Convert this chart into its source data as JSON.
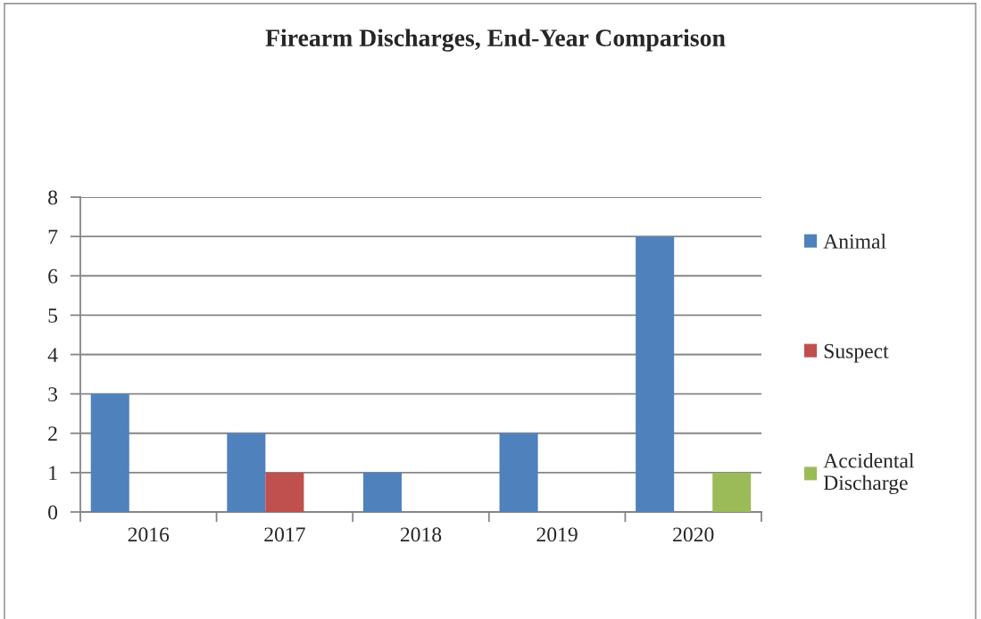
{
  "chart_data": {
    "type": "bar",
    "title": "Firearm Discharges, End-Year Comparison",
    "categories": [
      "2016",
      "2017",
      "2018",
      "2019",
      "2020"
    ],
    "series": [
      {
        "name": "Animal",
        "color": "#4f81bd",
        "values": [
          3,
          2,
          1,
          2,
          7
        ]
      },
      {
        "name": "Suspect",
        "color": "#c0504d",
        "values": [
          null,
          1,
          null,
          null,
          null
        ]
      },
      {
        "name": "Accidental Discharge",
        "color": "#9bbb59",
        "values": [
          null,
          null,
          null,
          null,
          1
        ]
      }
    ],
    "ylim": [
      0,
      8
    ],
    "yticks": [
      0,
      1,
      2,
      3,
      4,
      5,
      6,
      7,
      8
    ],
    "grid": "y",
    "legend": "right"
  }
}
